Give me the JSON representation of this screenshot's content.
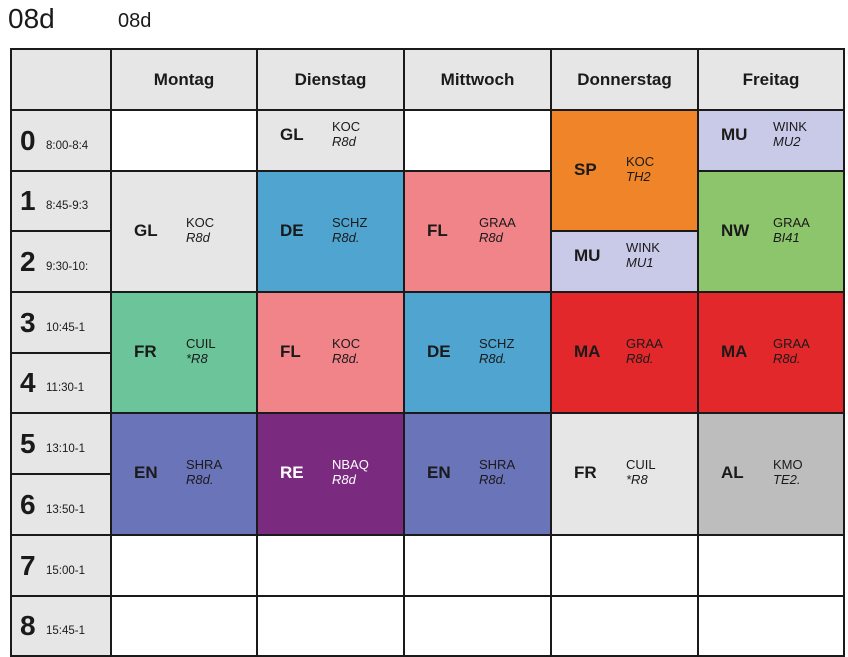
{
  "title": {
    "class_code": "08d",
    "class_name": "08d"
  },
  "days": [
    "Montag",
    "Dienstag",
    "Mittwoch",
    "Donnerstag",
    "Freitag"
  ],
  "periods": [
    {
      "number": "0",
      "time": "8:00-8:4"
    },
    {
      "number": "1",
      "time": "8:45-9:3"
    },
    {
      "number": "2",
      "time": "9:30-10:"
    },
    {
      "number": "3",
      "time": "10:45-1"
    },
    {
      "number": "4",
      "time": "11:30-1"
    },
    {
      "number": "5",
      "time": "13:10-1"
    },
    {
      "number": "6",
      "time": "13:50-1"
    },
    {
      "number": "7",
      "time": "15:00-1"
    },
    {
      "number": "8",
      "time": "15:45-1"
    }
  ],
  "lessons": [
    {
      "day": 0,
      "start": 1,
      "span": 2,
      "subject": "GL",
      "teacher": "KOC",
      "room": "R8d",
      "color": "#e6e6e6"
    },
    {
      "day": 0,
      "start": 3,
      "span": 2,
      "subject": "FR",
      "teacher": "CUIL",
      "room": "*R8",
      "color": "#6cc49a"
    },
    {
      "day": 0,
      "start": 5,
      "span": 2,
      "subject": "EN",
      "teacher": "SHRA",
      "room": "R8d.",
      "color": "#6a74b8"
    },
    {
      "day": 1,
      "start": 0,
      "span": 1,
      "subject": "GL",
      "teacher": "KOC",
      "room": "R8d",
      "color": "#e6e6e6"
    },
    {
      "day": 1,
      "start": 1,
      "span": 2,
      "subject": "DE",
      "teacher": "SCHZ",
      "room": "R8d.",
      "color": "#4fa5cf"
    },
    {
      "day": 1,
      "start": 3,
      "span": 2,
      "subject": "FL",
      "teacher": "KOC",
      "room": "R8d.",
      "color": "#f18489"
    },
    {
      "day": 1,
      "start": 5,
      "span": 2,
      "subject": "RE",
      "teacher": "NBAQ",
      "room": "R8d",
      "color": "#7a2b80",
      "text_color": "#ffffff"
    },
    {
      "day": 2,
      "start": 1,
      "span": 2,
      "subject": "FL",
      "teacher": "GRAA",
      "room": "R8d",
      "color": "#f18489"
    },
    {
      "day": 2,
      "start": 3,
      "span": 2,
      "subject": "DE",
      "teacher": "SCHZ",
      "room": "R8d.",
      "color": "#4fa5cf"
    },
    {
      "day": 2,
      "start": 5,
      "span": 2,
      "subject": "EN",
      "teacher": "SHRA",
      "room": "R8d.",
      "color": "#6a74b8"
    },
    {
      "day": 3,
      "start": 0,
      "span": 2,
      "subject": "SP",
      "teacher": "KOC",
      "room": "TH2",
      "color": "#f08428"
    },
    {
      "day": 3,
      "start": 2,
      "span": 1,
      "subject": "MU",
      "teacher": "WINK",
      "room": "MU1",
      "color": "#c9c9e8"
    },
    {
      "day": 3,
      "start": 3,
      "span": 2,
      "subject": "MA",
      "teacher": "GRAA",
      "room": "R8d.",
      "color": "#e2282b"
    },
    {
      "day": 3,
      "start": 5,
      "span": 2,
      "subject": "FR",
      "teacher": "CUIL",
      "room": "*R8",
      "color": "#e6e6e6"
    },
    {
      "day": 4,
      "start": 0,
      "span": 1,
      "subject": "MU",
      "teacher": "WINK",
      "room": "MU2",
      "color": "#c9c9e8"
    },
    {
      "day": 4,
      "start": 1,
      "span": 2,
      "subject": "NW",
      "teacher": "GRAA",
      "room": "BI41",
      "color": "#8dc56c"
    },
    {
      "day": 4,
      "start": 3,
      "span": 2,
      "subject": "MA",
      "teacher": "GRAA",
      "room": "R8d.",
      "color": "#e2282b"
    },
    {
      "day": 4,
      "start": 5,
      "span": 2,
      "subject": "AL",
      "teacher": "KMO",
      "room": "TE2.",
      "color": "#bdbdbd"
    }
  ]
}
